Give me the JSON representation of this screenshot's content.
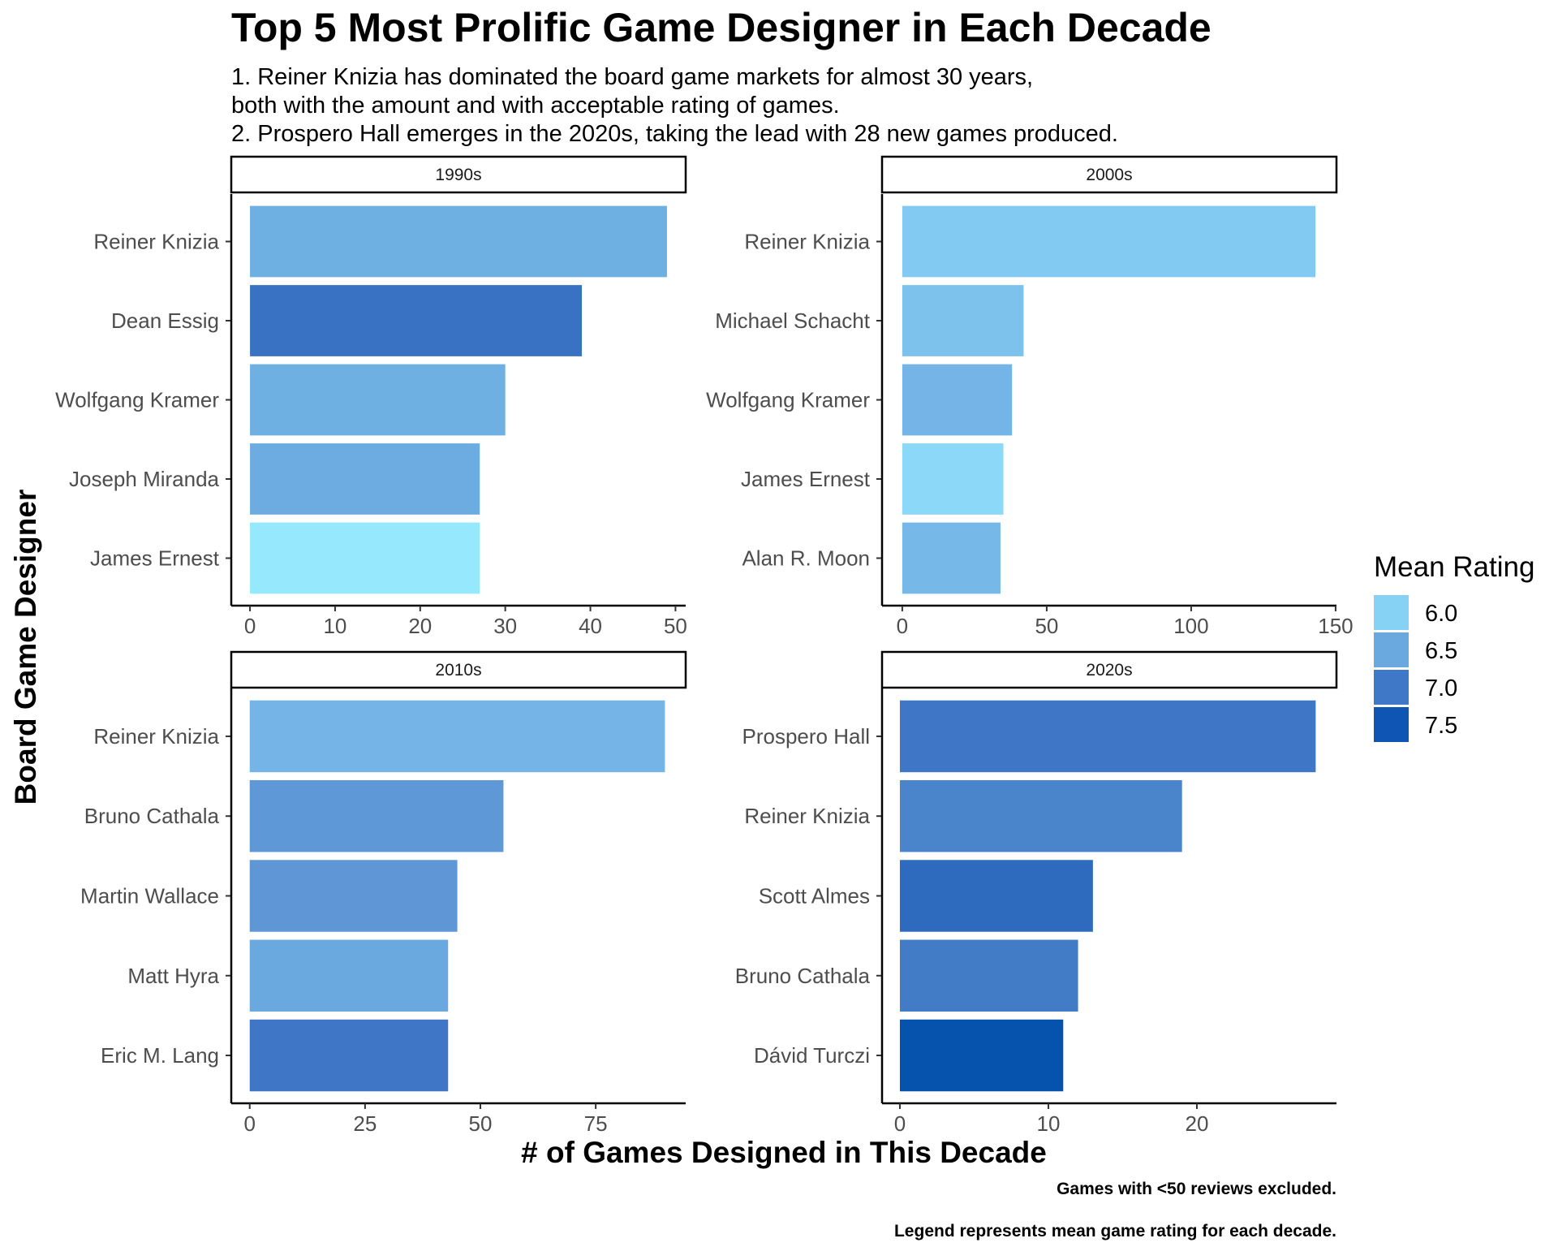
{
  "title": "Top 5 Most Prolific Game Designer in Each Decade",
  "subtitle": [
    "1. Reiner Knizia has dominated the board game markets for almost 30 years,",
    "both with the amount and with acceptable rating of games.",
    "2. Prospero Hall emerges in the 2020s, taking the lead with 28 new games produced."
  ],
  "xlabel": "# of Games Designed in This Decade",
  "ylabel": "Board Game Designer",
  "captions": [
    "Games with <50 reviews excluded.",
    "Legend represents mean game rating for each decade."
  ],
  "legend": {
    "title": "Mean Rating",
    "entries": [
      {
        "label": "6.0",
        "color": "#86d2f5"
      },
      {
        "label": "6.5",
        "color": "#6aa8e0"
      },
      {
        "label": "7.0",
        "color": "#4078c8"
      },
      {
        "label": "7.5",
        "color": "#0f55b4"
      }
    ]
  },
  "chart_data": [
    {
      "type": "bar",
      "orientation": "horizontal",
      "panel": "1990s",
      "categories": [
        "Reiner Knizia",
        "Dean Essig",
        "Wolfgang Kramer",
        "Joseph Miranda",
        "James Ernest"
      ],
      "values": [
        49,
        39,
        30,
        27,
        27
      ],
      "colors": [
        "#6eb0e2",
        "#3a72c3",
        "#6eb0e2",
        "#6cace0",
        "#96e8fd"
      ],
      "xlim": [
        -2.2,
        51.2
      ],
      "xticks": [
        0,
        10,
        20,
        30,
        40,
        50
      ]
    },
    {
      "type": "bar",
      "orientation": "horizontal",
      "panel": "2000s",
      "categories": [
        "Reiner Knizia",
        "Michael Schacht",
        "Wolfgang Kramer",
        "James Ernest",
        "Alan R. Moon"
      ],
      "values": [
        143,
        42,
        38,
        35,
        34
      ],
      "colors": [
        "#82caf2",
        "#7dc2ed",
        "#74b4e6",
        "#8cd8f8",
        "#76b8e8"
      ],
      "xlim": [
        -7,
        150.3
      ],
      "xticks": [
        0,
        50,
        100,
        150
      ]
    },
    {
      "type": "bar",
      "orientation": "horizontal",
      "panel": "2010s",
      "categories": [
        "Reiner Knizia",
        "Bruno Cathala",
        "Martin Wallace",
        "Matt Hyra",
        "Eric M. Lang"
      ],
      "values": [
        90,
        55,
        45,
        43,
        43
      ],
      "colors": [
        "#74b4e6",
        "#5e98d7",
        "#5e96d6",
        "#6aa8e0",
        "#3f77c6"
      ],
      "xlim": [
        -4,
        94.5
      ],
      "xticks": [
        0,
        25,
        50,
        75
      ]
    },
    {
      "type": "bar",
      "orientation": "horizontal",
      "panel": "2020s",
      "categories": [
        "Prospero Hall",
        "Reiner Knizia",
        "Scott Almes",
        "Bruno Cathala",
        "Dávid Turczi"
      ],
      "values": [
        28,
        19,
        13,
        12,
        11
      ],
      "colors": [
        "#3f77c6",
        "#4a84cb",
        "#2e6abe",
        "#427bc6",
        "#0553ad"
      ],
      "xlim": [
        -1.2,
        29.4
      ],
      "xticks": [
        0,
        10,
        20
      ]
    }
  ]
}
